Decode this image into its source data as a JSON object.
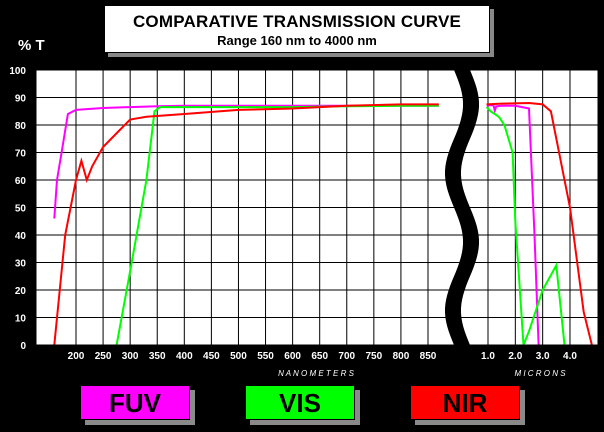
{
  "title": "COMPARATIVE TRANSMISSION CURVE",
  "subtitle": "Range  160 nm to 4000 nm",
  "y_axis_label": "% T",
  "x_label_nm": "N A N O M E T E R S",
  "x_label_um": "M I C R O N S",
  "legend": [
    {
      "label": "FUV",
      "color": "#ff00ff"
    },
    {
      "label": "VIS",
      "color": "#00ff00"
    },
    {
      "label": "NIR",
      "color": "#ff0000"
    }
  ],
  "chart_data": {
    "type": "line",
    "title": "COMPARATIVE TRANSMISSION CURVE",
    "subtitle": "Range  160 nm to 4000 nm",
    "ylabel": "% T",
    "ylim": [
      0,
      100
    ],
    "y_ticks": [
      "0",
      "10",
      "20",
      "30",
      "40",
      "50",
      "60",
      "70",
      "80",
      "90",
      "100"
    ],
    "x_ticks_nm": [
      "200",
      "250",
      "300",
      "350",
      "400",
      "450",
      "500",
      "550",
      "600",
      "650",
      "700",
      "750",
      "800",
      "850"
    ],
    "x_ticks_um": [
      "1.0",
      "2.0",
      "3.0",
      "4.0"
    ],
    "xlabel_nm": "N A N O M E T E R S",
    "xlabel_um": "M I C R O N S",
    "grid": true,
    "axis_break": "between 850 nm and 1.0 µm",
    "series": [
      {
        "name": "FUV",
        "color": "#ff00ff",
        "nm": [
          [
            160,
            46
          ],
          [
            165,
            60
          ],
          [
            175,
            72
          ],
          [
            185,
            84
          ],
          [
            200,
            85.5
          ],
          [
            250,
            86.2
          ],
          [
            300,
            86.5
          ],
          [
            350,
            86.8
          ],
          [
            400,
            87
          ],
          [
            500,
            87
          ],
          [
            600,
            87
          ],
          [
            700,
            87
          ],
          [
            800,
            87
          ],
          [
            870,
            87
          ]
        ],
        "um": [
          [
            0.95,
            87.2
          ],
          [
            1.2,
            87.2
          ],
          [
            1.25,
            85.2
          ],
          [
            1.3,
            86.8
          ],
          [
            1.5,
            87
          ],
          [
            2.0,
            87
          ],
          [
            2.5,
            86
          ],
          [
            2.7,
            40
          ],
          [
            2.85,
            0
          ]
        ]
      },
      {
        "name": "VIS",
        "color": "#00ff00",
        "nm": [
          [
            275,
            0
          ],
          [
            300,
            27
          ],
          [
            330,
            60
          ],
          [
            345,
            85
          ],
          [
            355,
            86.5
          ],
          [
            400,
            86.5
          ],
          [
            500,
            86.5
          ],
          [
            600,
            86.5
          ],
          [
            700,
            86.8
          ],
          [
            800,
            87
          ],
          [
            870,
            87
          ]
        ],
        "um": [
          [
            0.95,
            86.5
          ],
          [
            1.1,
            85
          ],
          [
            1.4,
            83
          ],
          [
            1.6,
            80
          ],
          [
            1.9,
            70
          ],
          [
            2.0,
            45
          ],
          [
            2.3,
            0
          ],
          [
            2.5,
            5
          ],
          [
            3.0,
            20
          ],
          [
            3.5,
            29
          ],
          [
            3.8,
            0
          ]
        ]
      },
      {
        "name": "NIR",
        "color": "#ff0000",
        "nm": [
          [
            160,
            0
          ],
          [
            180,
            40
          ],
          [
            200,
            60
          ],
          [
            210,
            67
          ],
          [
            220,
            60
          ],
          [
            230,
            65
          ],
          [
            250,
            72
          ],
          [
            280,
            78
          ],
          [
            300,
            82
          ],
          [
            330,
            83
          ],
          [
            400,
            84
          ],
          [
            500,
            85.5
          ],
          [
            600,
            86
          ],
          [
            700,
            87
          ],
          [
            800,
            87.5
          ],
          [
            870,
            87.5
          ]
        ],
        "um": [
          [
            0.95,
            87.5
          ],
          [
            1.5,
            87.8
          ],
          [
            2.5,
            88
          ],
          [
            3.0,
            87.5
          ],
          [
            3.3,
            85
          ],
          [
            3.7,
            65
          ],
          [
            4.0,
            50
          ],
          [
            4.5,
            12
          ],
          [
            4.8,
            0
          ]
        ]
      }
    ]
  }
}
